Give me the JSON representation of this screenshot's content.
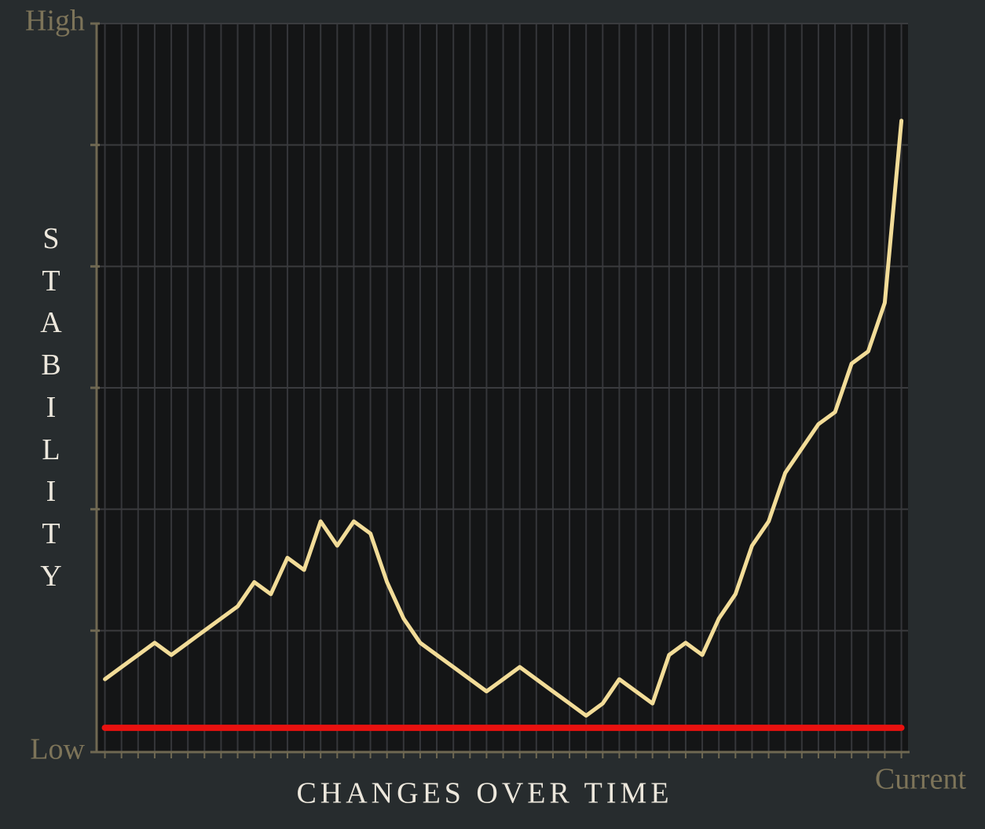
{
  "chart_data": {
    "type": "line",
    "x_label": "CHANGES OVER TIME",
    "y_label": "STABILITY",
    "x_end_label": "Current",
    "x": [
      0,
      1,
      2,
      3,
      4,
      5,
      6,
      7,
      8,
      9,
      10,
      11,
      12,
      13,
      14,
      15,
      16,
      17,
      18,
      19,
      20,
      21,
      22,
      23,
      24,
      25,
      26,
      27,
      28,
      29,
      30,
      31,
      32,
      33,
      34,
      35,
      36,
      37,
      38,
      39,
      40,
      41,
      42,
      43,
      44,
      45,
      46,
      47,
      48
    ],
    "values": [
      0.6,
      0.7,
      0.8,
      0.9,
      0.8,
      0.9,
      1.0,
      1.1,
      1.2,
      1.4,
      1.3,
      1.6,
      1.5,
      1.9,
      1.7,
      1.9,
      1.8,
      1.4,
      1.1,
      0.9,
      0.8,
      0.7,
      0.6,
      0.5,
      0.6,
      0.7,
      0.6,
      0.5,
      0.4,
      0.3,
      0.4,
      0.6,
      0.5,
      0.4,
      0.8,
      0.9,
      0.8,
      1.1,
      1.3,
      1.7,
      1.9,
      2.3,
      2.5,
      2.7,
      2.8,
      3.2,
      3.3,
      3.7,
      5.2
    ],
    "color": "#f2dc98",
    "reference_line": {
      "value": 0.2,
      "color": "#e8110f"
    },
    "xlim": [
      -0.5,
      48.4
    ],
    "ylim": [
      0,
      6
    ],
    "yticks": [
      {
        "value": 0,
        "label": "Low"
      },
      {
        "value": 1,
        "label": null
      },
      {
        "value": 2,
        "label": null
      },
      {
        "value": 3,
        "label": null
      },
      {
        "value": 4,
        "label": null
      },
      {
        "value": 5,
        "label": null
      },
      {
        "value": 6,
        "label": "High"
      }
    ],
    "grid": true
  }
}
